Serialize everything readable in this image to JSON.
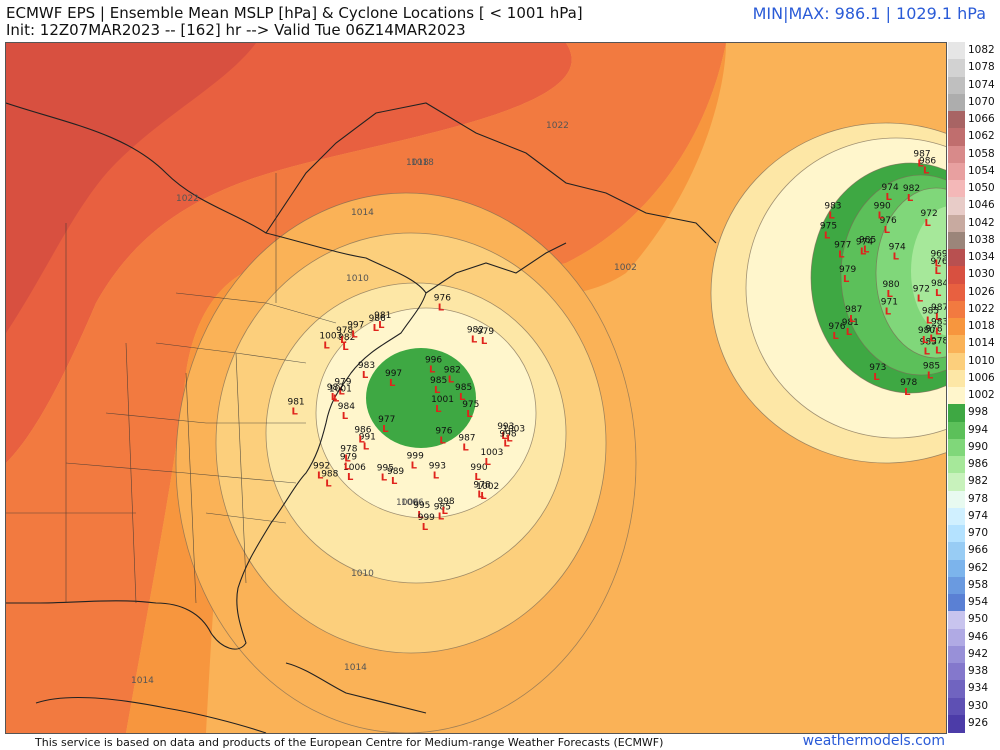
{
  "header": {
    "title": "ECMWF EPS | Ensemble Mean MSLP [hPa] & Cyclone Locations [ < 1001 hPa]",
    "init": "Init: 12Z07MAR2023 -- [162] hr --> Valid Tue 06Z14MAR2023",
    "minmax": "MIN|MAX: 986.1 | 1029.1 hPa"
  },
  "footer": {
    "attribution": "This service is based on data and products of the European Centre for Medium-range Weather Forecasts (ECMWF)",
    "brand": "weathermodels.com"
  },
  "colorbar": {
    "levels": [
      "1082",
      "1078",
      "1074",
      "1070",
      "1066",
      "1062",
      "1058",
      "1054",
      "1050",
      "1046",
      "1042",
      "1038",
      "1034",
      "1030",
      "1026",
      "1022",
      "1018",
      "1014",
      "1010",
      "1006",
      "1002",
      "998",
      "994",
      "990",
      "986",
      "982",
      "978",
      "974",
      "970",
      "966",
      "962",
      "958",
      "954",
      "950",
      "946",
      "942",
      "938",
      "934",
      "930",
      "926"
    ],
    "colors": [
      "#e6e6e6",
      "#d2d2d2",
      "#bfbfbf",
      "#adadad",
      "#a86464",
      "#c06e6e",
      "#d88a8a",
      "#e8a0a0",
      "#f4b8b8",
      "#e8ccc8",
      "#c8aaa0",
      "#9b857a",
      "#b85050",
      "#d85040",
      "#e86040",
      "#f27a40",
      "#f7963e",
      "#fab257",
      "#fccf7c",
      "#fde7a6",
      "#fff6cc",
      "#3ea843",
      "#5cc05a",
      "#80d77a",
      "#a6e89a",
      "#c8f2bc",
      "#e8faf0",
      "#d0f0ff",
      "#b4e2ff",
      "#98ccf4",
      "#7cb4ec",
      "#6a9ae0",
      "#5a80d4",
      "#c8c4ee",
      "#b0aae4",
      "#9890d8",
      "#8478cc",
      "#7064c0",
      "#5e50b4",
      "#4c3ca8"
    ]
  },
  "isobar_labels": [
    "1022",
    "1022",
    "1018",
    "1014",
    "1010",
    "1006",
    "1002",
    "1010",
    "1006",
    "1014",
    "1014",
    "1018"
  ],
  "cyclones": {
    "cluster_west": [
      "979",
      "987",
      "985",
      "1006",
      "983",
      "978",
      "991",
      "984",
      "990",
      "995",
      "993",
      "985",
      "986",
      "979",
      "981",
      "976",
      "977",
      "975",
      "982",
      "982",
      "979",
      "988",
      "978",
      "999",
      "997",
      "995",
      "976",
      "982",
      "986",
      "981",
      "989",
      "993",
      "978",
      "999",
      "985",
      "1001",
      "998",
      "992",
      "982",
      "1003",
      "996",
      "1001",
      "997",
      "1003",
      "998",
      "1002",
      "1003"
    ],
    "cluster_east": [
      "980",
      "976",
      "969",
      "981",
      "977",
      "983",
      "972",
      "990",
      "987",
      "974",
      "979",
      "978",
      "971",
      "973",
      "975",
      "983",
      "976",
      "974",
      "974",
      "978",
      "980",
      "978",
      "976",
      "972",
      "984",
      "985",
      "987",
      "982",
      "986",
      "983",
      "987",
      "985",
      "985"
    ]
  }
}
